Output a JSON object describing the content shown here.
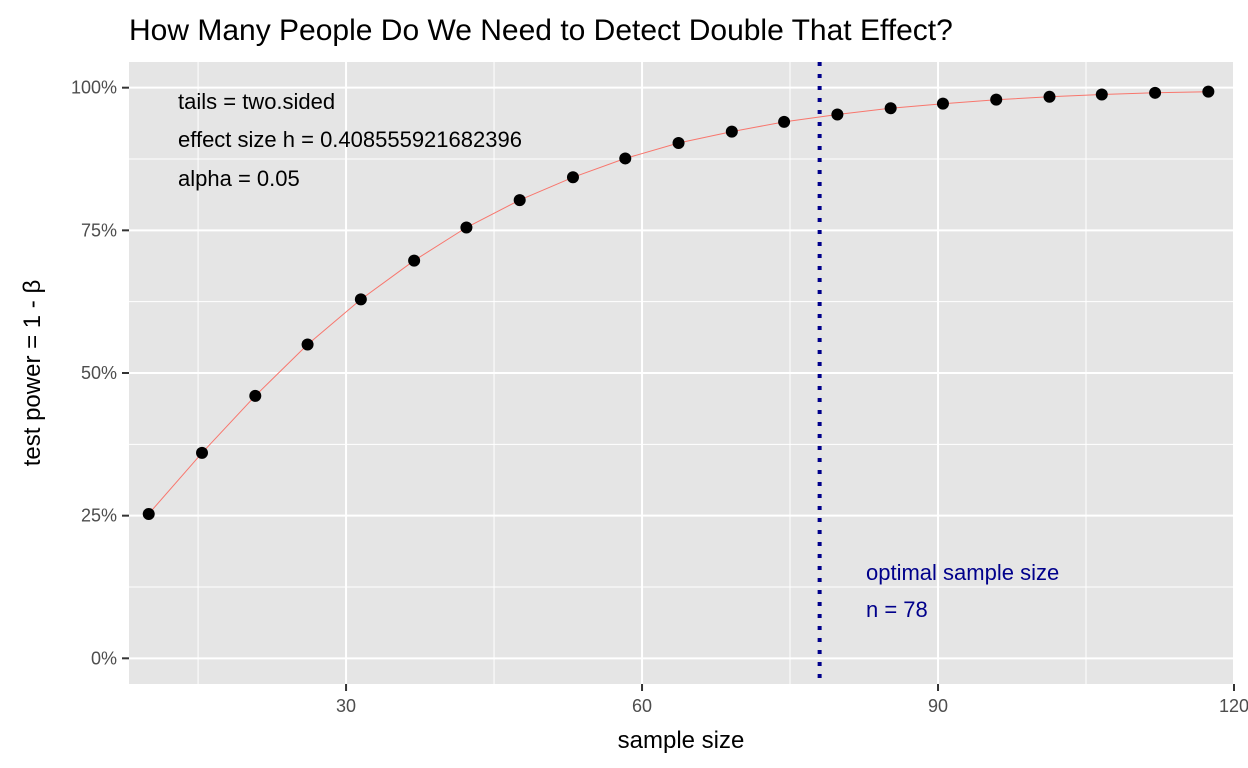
{
  "chart_data": {
    "type": "line",
    "title": "How Many People Do We Need to Detect Double That Effect?",
    "xlabel": "sample size",
    "ylabel": "test power = 1 - β",
    "xlim": [
      8,
      120
    ],
    "ylim": [
      -0.045,
      1.045
    ],
    "x_ticks": [
      30,
      60,
      90,
      120
    ],
    "x_tick_labels": [
      "30",
      "60",
      "90",
      "120"
    ],
    "y_ticks": [
      0,
      0.25,
      0.5,
      0.75,
      1.0
    ],
    "y_tick_labels": [
      "0%",
      "25%",
      "50%",
      "75%",
      "100%"
    ],
    "grid": true,
    "series": [
      {
        "x": [
          10,
          15.4,
          20.8,
          26.1,
          31.5,
          36.9,
          42.2,
          47.6,
          53.0,
          58.3,
          63.7,
          69.1,
          74.4,
          79.8,
          85.2,
          90.5,
          95.9,
          101.3,
          106.6,
          112.0,
          117.4
        ],
        "values": [
          0.253,
          0.36,
          0.46,
          0.55,
          0.629,
          0.697,
          0.755,
          0.803,
          0.843,
          0.876,
          0.903,
          0.923,
          0.94,
          0.953,
          0.964,
          0.972,
          0.979,
          0.984,
          0.988,
          0.991,
          0.993
        ]
      }
    ],
    "line_color": "#f8766d",
    "point_color": "#000000",
    "vline": {
      "x": 78,
      "color": "#00008b"
    },
    "annotations": {
      "params": [
        "tails = two.sided",
        "effect size h = 0.408555921682396",
        "alpha = 0.05"
      ],
      "optimal": [
        "optimal sample size",
        "n = 78"
      ]
    },
    "panel_background": "#e5e5e5",
    "grid_color": "#ffffff"
  }
}
